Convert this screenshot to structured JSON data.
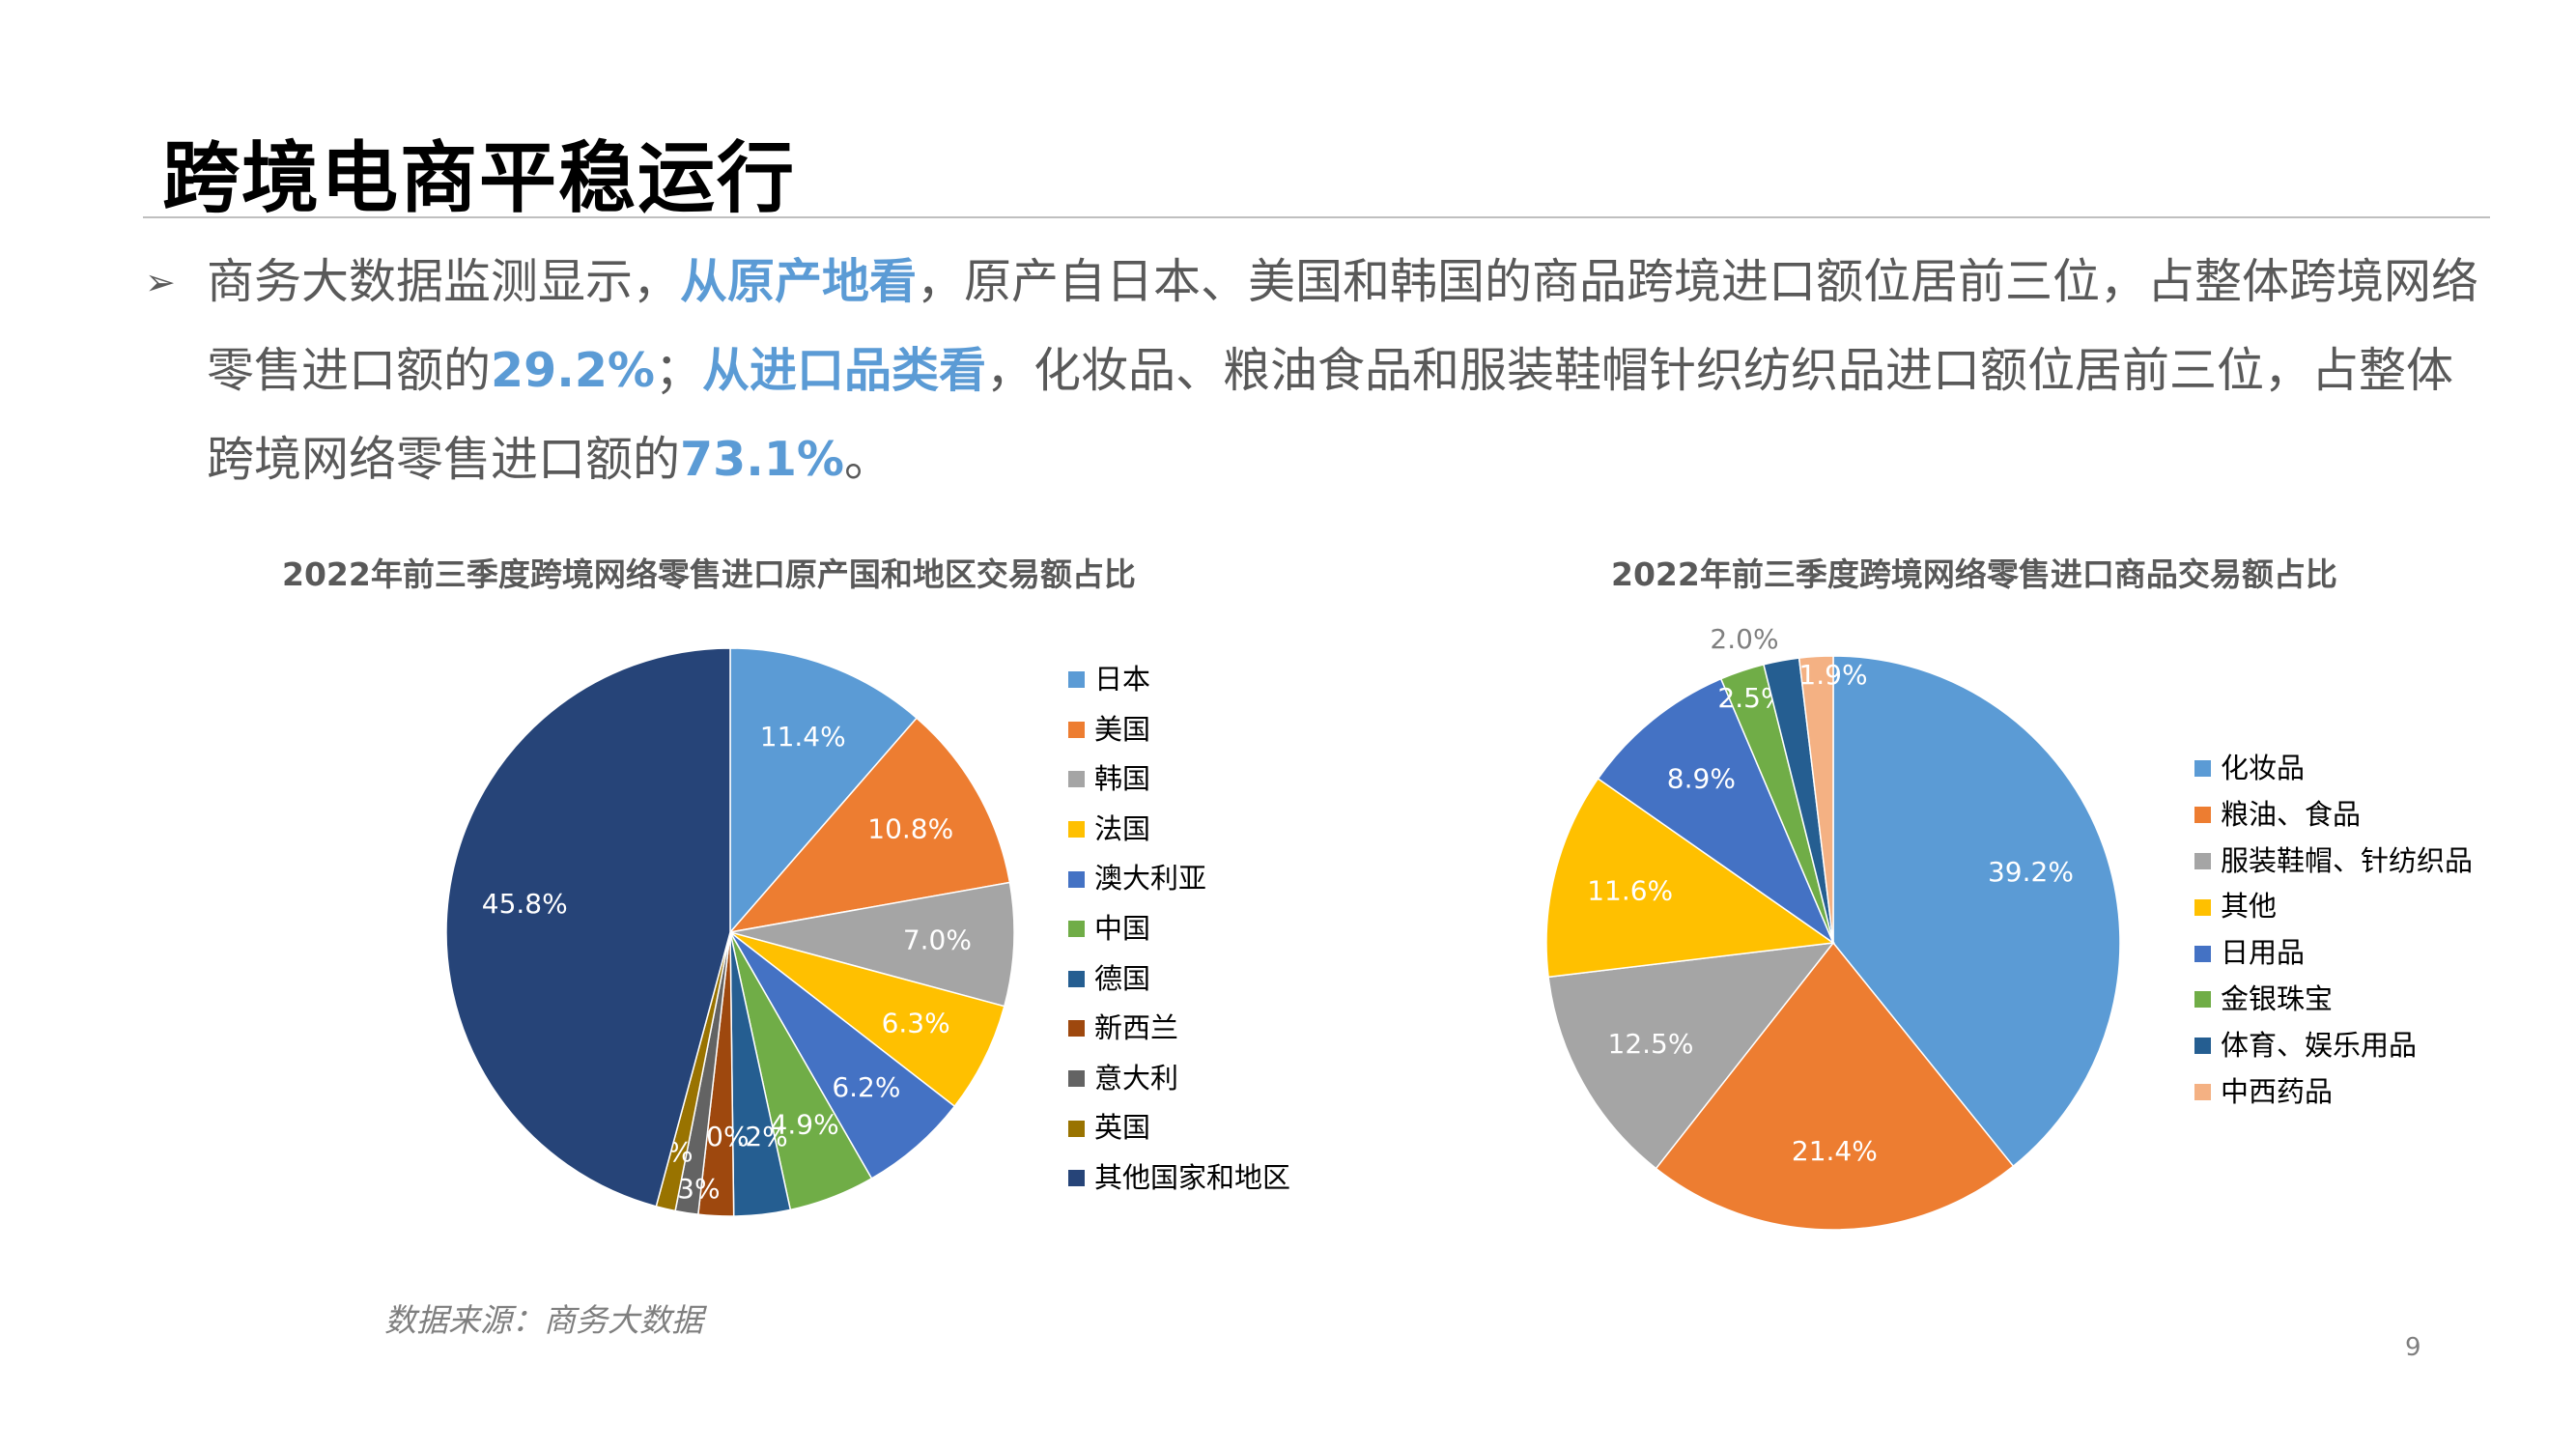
{
  "slide": {
    "title": "跨境电商平稳运行",
    "bullet_arrow": "➢",
    "bullet": {
      "t1": "商务大数据监测显示，",
      "h1": "从原产地看",
      "t2": "，原产自日本、美国和韩国的商品跨境进口额位居前三位，占整体跨境网络零售进口额的",
      "h2": "29.2%",
      "t3": "；",
      "h3": "从进口品类看",
      "t4": "，化妆品、粮油食品和服装鞋帽针织纺织品进口额位居前三位，占整体跨境网络零售进口额的",
      "h4": "73.1%",
      "t5": "。"
    },
    "source": "数据来源：商务大数据",
    "page_number": "9"
  },
  "chart_data": [
    {
      "type": "pie",
      "title": "2022年前三季度跨境网络零售进口原产国和地区交易额占比",
      "legend_position": "right",
      "categories": [
        "日本",
        "美国",
        "韩国",
        "法国",
        "澳大利亚",
        "中国",
        "德国",
        "新西兰",
        "意大利",
        "英国",
        "其他国家和地区"
      ],
      "values": [
        11.4,
        10.8,
        7.0,
        6.3,
        6.2,
        4.9,
        3.2,
        2.0,
        1.3,
        1.1,
        45.8
      ],
      "labels": [
        "11.4%",
        "10.8%",
        "7.0%",
        "6.3%",
        "6.2%",
        "4.9%",
        "3.2%",
        "2.0%",
        "1.3%",
        "1.1%",
        "45.8%"
      ],
      "colors": [
        "#5b9bd5",
        "#ed7d31",
        "#a5a5a5",
        "#ffc000",
        "#4472c4",
        "#70ad47",
        "#255e91",
        "#9e480e",
        "#636363",
        "#997300",
        "#264478"
      ],
      "label_colors": [
        "#ffffff",
        "#ffffff",
        "#ffffff",
        "#ffffff",
        "#ffffff",
        "#ffffff",
        "#ffffff",
        "#ffffff",
        "#ffffff",
        "#ffffff",
        "#ffffff"
      ]
    },
    {
      "type": "pie",
      "title": "2022年前三季度跨境网络零售进口商品交易额占比",
      "legend_position": "right",
      "categories": [
        "化妆品",
        "粮油、食品",
        "服装鞋帽、针纺织品",
        "其他",
        "日用品",
        "金银珠宝",
        "体育、娱乐用品",
        "中西药品"
      ],
      "values": [
        39.2,
        21.4,
        12.5,
        11.6,
        8.9,
        2.5,
        2.0,
        1.9
      ],
      "labels": [
        "39.2%",
        "21.4%",
        "12.5%",
        "11.6%",
        "8.9%",
        "2.5%",
        "2.0%",
        "1.9%"
      ],
      "colors": [
        "#5b9bd5",
        "#ed7d31",
        "#a5a5a5",
        "#ffc000",
        "#4472c4",
        "#70ad47",
        "#255e91",
        "#f4b183"
      ],
      "label_colors": [
        "#ffffff",
        "#ffffff",
        "#ffffff",
        "#ffffff",
        "#ffffff",
        "#ffffff",
        "#7f7f7f",
        "#ffffff"
      ]
    }
  ]
}
